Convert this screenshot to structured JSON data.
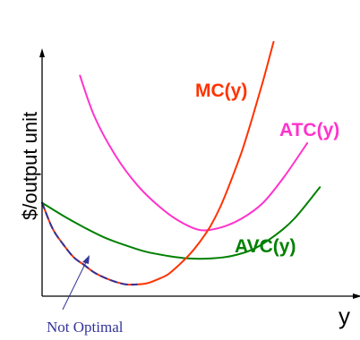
{
  "chart_data": {
    "type": "line",
    "title": "",
    "xlabel": "y",
    "ylabel": "$/output unit",
    "axis_ticks": "none",
    "grid": false,
    "colors": {
      "MC": "#ff3300",
      "ATC": "#ff33cc",
      "AVC": "#008000",
      "annotation": "#333399"
    },
    "series": [
      {
        "name": "MC(y)",
        "x": [
          0,
          0.5,
          1,
          1.5,
          2,
          2.5,
          3,
          3.5,
          4,
          4.5,
          5,
          5.5,
          6,
          6.5,
          7,
          7.5,
          8,
          8.5,
          9,
          9.5,
          10,
          10.5,
          11
        ],
        "y": [
          3.6,
          2.6,
          2.0,
          1.5,
          1.2,
          0.9,
          0.7,
          0.55,
          0.45,
          0.45,
          0.5,
          0.65,
          0.85,
          1.2,
          1.6,
          2.1,
          2.7,
          3.5,
          4.5,
          5.6,
          6.9,
          8.3,
          9.8
        ]
      },
      {
        "name": "ATC(y)",
        "x": [
          1.8,
          2.5,
          3.5,
          4.5,
          5.5,
          6.5,
          7.5,
          8.5,
          9.5,
          10.5,
          11.5,
          12.6
        ],
        "y": [
          8.5,
          6.9,
          5.4,
          4.3,
          3.5,
          2.9,
          2.55,
          2.65,
          3.0,
          3.6,
          4.6,
          5.9
        ]
      },
      {
        "name": "AVC(y)",
        "x": [
          0,
          1,
          2,
          3,
          4,
          5,
          6,
          7,
          8,
          9,
          10,
          11,
          12,
          13.2
        ],
        "y": [
          3.6,
          3.1,
          2.65,
          2.25,
          1.95,
          1.7,
          1.55,
          1.45,
          1.45,
          1.55,
          1.8,
          2.3,
          3.0,
          4.2
        ]
      }
    ],
    "annotations": [
      {
        "text": "Not Optimal",
        "color": "#333399",
        "target_series": "MC(y)",
        "target_note": "falling segment of MC below AVC"
      }
    ]
  }
}
